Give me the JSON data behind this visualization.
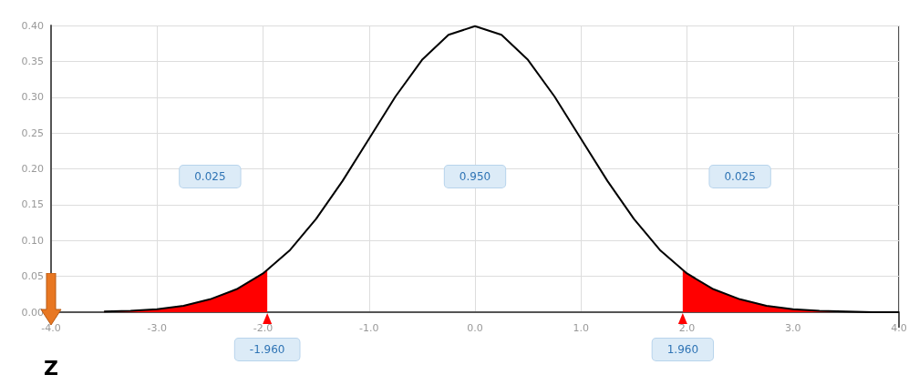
{
  "chart_data": {
    "type": "line",
    "xlabel": "Z",
    "annotations": [
      "0.025",
      "0.950",
      "0.025",
      {
        "text": "-1.960",
        "x": -1.96,
        "y": 0
      },
      {
        "text": "1.960",
        "x": 1.96,
        "y": 0
      }
    ],
    "series": [
      {
        "type": "area",
        "color": "#ff0000",
        "x": [
          -3.5,
          -3.25,
          -3,
          -2.75,
          -2.5,
          -2.25,
          -2,
          -1.96
        ],
        "values": [
          0.001,
          0.002,
          0.004,
          0.009,
          0.018,
          0.032,
          0.054,
          0.058
        ]
      },
      {
        "type": "area",
        "color": "#ff0000",
        "x": [
          1.96,
          2,
          2.25,
          2.5,
          2.75,
          3,
          3.25,
          3.5,
          3.75,
          4
        ],
        "values": [
          0.058,
          0.054,
          0.032,
          0.018,
          0.009,
          0.004,
          0.002,
          0.001,
          0.0,
          0.0
        ]
      },
      {
        "color": "#000000",
        "x": [
          -3.5,
          -3.25,
          -3,
          -2.75,
          -2.5,
          -2.25,
          -2,
          -1.75,
          -1.5,
          -1.25,
          -1,
          -0.75,
          -0.5,
          -0.25,
          0,
          0.25,
          0.5,
          0.75,
          1,
          1.25,
          1.5,
          1.75,
          2,
          2.25,
          2.5,
          2.75,
          3,
          3.25,
          3.5,
          3.75,
          4
        ],
        "values": [
          0.001,
          0.002,
          0.004,
          0.009,
          0.018,
          0.032,
          0.054,
          0.086,
          0.13,
          0.183,
          0.242,
          0.301,
          0.352,
          0.387,
          0.399,
          0.387,
          0.352,
          0.301,
          0.242,
          0.183,
          0.13,
          0.086,
          0.054,
          0.032,
          0.018,
          0.009,
          0.004,
          0.002,
          0.001,
          0.0,
          0.0
        ]
      }
    ],
    "xlim": [
      -4,
      4
    ],
    "xticks": [
      {
        "value": -4,
        "label": "-4.0"
      },
      {
        "value": -3,
        "label": "-3.0"
      },
      {
        "value": -2,
        "label": "-2.0"
      },
      {
        "value": -1,
        "label": "-1.0"
      },
      {
        "value": 0,
        "label": "0.0"
      },
      {
        "value": 1,
        "label": "1.0"
      },
      {
        "value": 2,
        "label": "2.0"
      },
      {
        "value": 3,
        "label": "3.0"
      },
      {
        "value": 4,
        "label": "4.0"
      }
    ],
    "ylim": [
      0,
      0.4
    ],
    "yticks": [
      {
        "value": 0,
        "label": "0.00"
      },
      0.05,
      {
        "value": 0.1,
        "label": "0.10"
      },
      0.15,
      {
        "value": 0.2,
        "label": "0.20"
      },
      0.25,
      {
        "value": 0.3,
        "label": "0.30"
      },
      0.35,
      {
        "value": 0.4,
        "label": "0.40"
      }
    ],
    "grid": true,
    "marker": "none"
  }
}
